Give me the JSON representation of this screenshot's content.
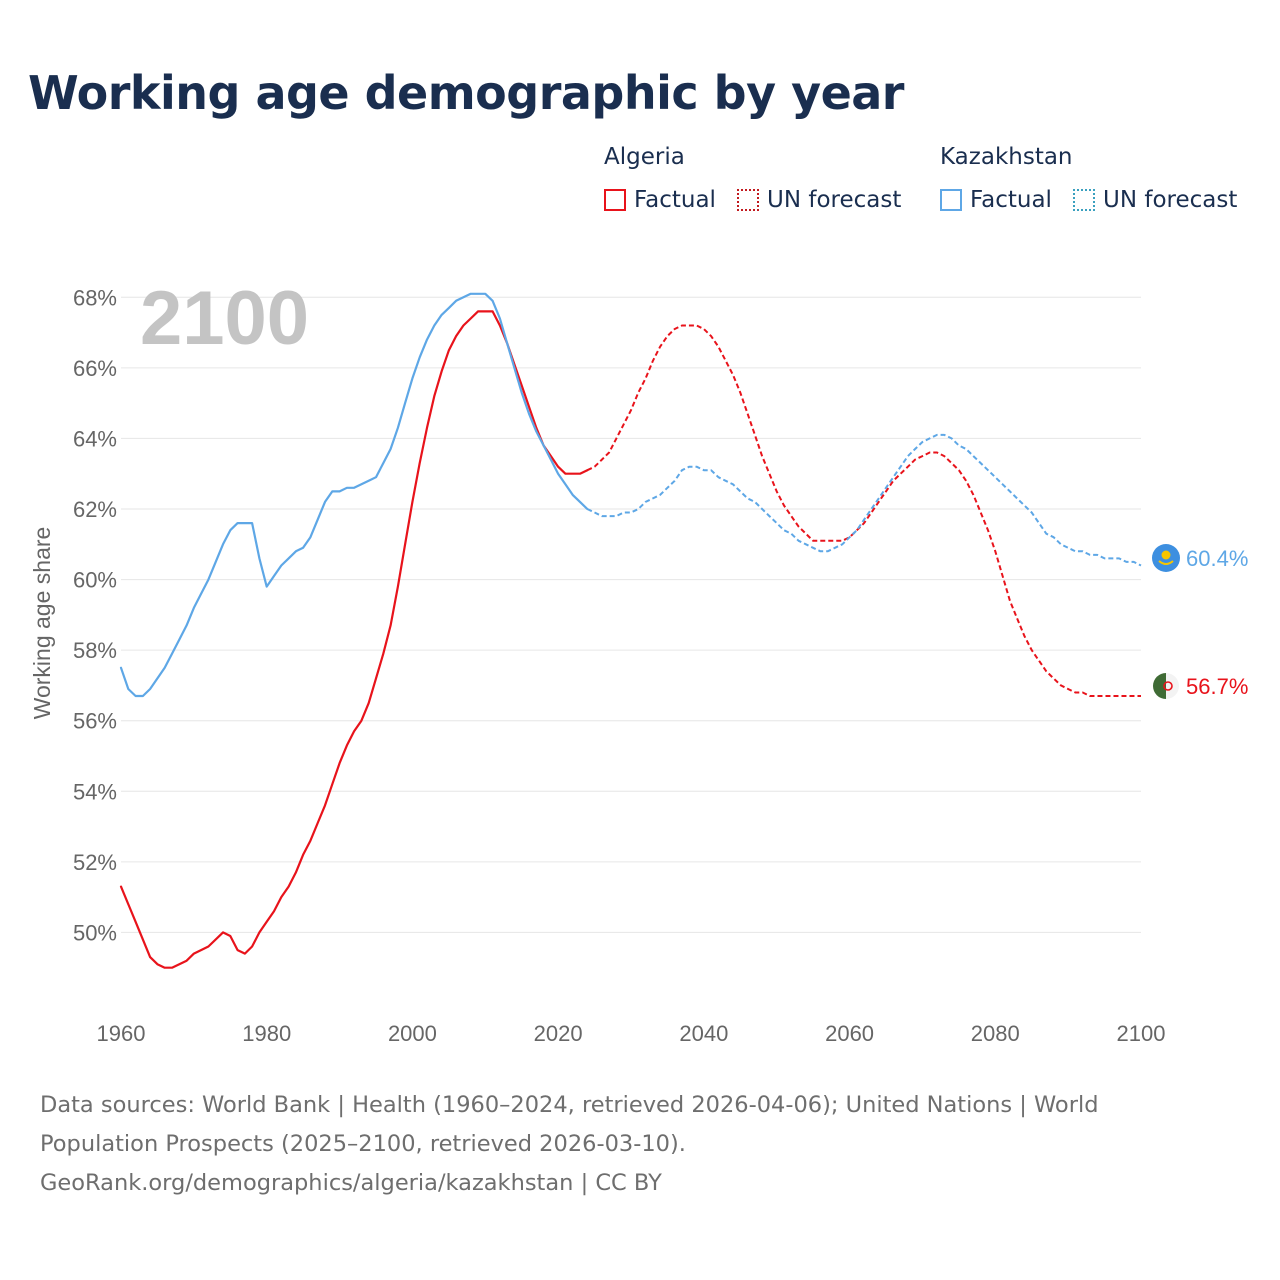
{
  "title": "Working age demographic by year",
  "legend": {
    "groups": [
      {
        "name": "Algeria",
        "factual": "Factual",
        "forecast": "UN forecast"
      },
      {
        "name": "Kazakhstan",
        "factual": "Factual",
        "forecast": "UN forecast"
      }
    ]
  },
  "year_overlay": "2100",
  "sources": {
    "line1": "Data sources: World Bank | Health (1960–2024, retrieved 2026-04-06); United Nations | World Population Prospects (2025–2100, retrieved 2026-03-10).",
    "line2": "GeoRank.org/demographics/algeria/kazakhstan | CC BY"
  },
  "colors": {
    "algeria": "#e8131b",
    "kazakhstan": "#5ea7e6",
    "grid": "#e6e6e6",
    "axis_text": "#666666",
    "title": "#1a2e4f"
  },
  "chart_data": {
    "type": "line",
    "title": "Working age demographic by year",
    "xlabel": "",
    "ylabel": "Working age share",
    "xlim": [
      1960,
      2100
    ],
    "ylim": [
      48,
      69
    ],
    "x_ticks": [
      1960,
      1980,
      2000,
      2020,
      2040,
      2060,
      2080,
      2100
    ],
    "y_ticks": [
      50,
      52,
      54,
      56,
      58,
      60,
      62,
      64,
      66,
      68
    ],
    "y_tick_labels": [
      "50%",
      "52%",
      "54%",
      "56%",
      "58%",
      "60%",
      "62%",
      "64%",
      "66%",
      "68%"
    ],
    "series": [
      {
        "name": "Algeria",
        "color": "#e8131b",
        "end_label": "56.7%",
        "flag_icon": "algeria-flag-icon",
        "factual": [
          [
            1960,
            51.3
          ],
          [
            1962,
            50.3
          ],
          [
            1964,
            49.3
          ],
          [
            1965,
            49.1
          ],
          [
            1966,
            49.0
          ],
          [
            1967,
            49.0
          ],
          [
            1968,
            49.1
          ],
          [
            1969,
            49.2
          ],
          [
            1970,
            49.4
          ],
          [
            1972,
            49.6
          ],
          [
            1974,
            50.0
          ],
          [
            1975,
            49.9
          ],
          [
            1976,
            49.5
          ],
          [
            1977,
            49.4
          ],
          [
            1978,
            49.6
          ],
          [
            1979,
            50.0
          ],
          [
            1980,
            50.3
          ],
          [
            1981,
            50.6
          ],
          [
            1982,
            51.0
          ],
          [
            1983,
            51.3
          ],
          [
            1984,
            51.7
          ],
          [
            1985,
            52.2
          ],
          [
            1986,
            52.6
          ],
          [
            1987,
            53.1
          ],
          [
            1988,
            53.6
          ],
          [
            1989,
            54.2
          ],
          [
            1990,
            54.8
          ],
          [
            1991,
            55.3
          ],
          [
            1992,
            55.7
          ],
          [
            1993,
            56.0
          ],
          [
            1994,
            56.5
          ],
          [
            1995,
            57.2
          ],
          [
            1996,
            57.9
          ],
          [
            1997,
            58.7
          ],
          [
            1998,
            59.8
          ],
          [
            1999,
            61.0
          ],
          [
            2000,
            62.2
          ],
          [
            2001,
            63.3
          ],
          [
            2002,
            64.3
          ],
          [
            2003,
            65.2
          ],
          [
            2004,
            65.9
          ],
          [
            2005,
            66.5
          ],
          [
            2006,
            66.9
          ],
          [
            2007,
            67.2
          ],
          [
            2008,
            67.4
          ],
          [
            2009,
            67.6
          ],
          [
            2010,
            67.6
          ],
          [
            2011,
            67.6
          ],
          [
            2012,
            67.2
          ],
          [
            2013,
            66.7
          ],
          [
            2014,
            66.1
          ],
          [
            2015,
            65.5
          ],
          [
            2016,
            64.9
          ],
          [
            2017,
            64.3
          ],
          [
            2018,
            63.8
          ],
          [
            2019,
            63.5
          ],
          [
            2020,
            63.2
          ],
          [
            2021,
            63.0
          ],
          [
            2022,
            63.0
          ],
          [
            2023,
            63.0
          ],
          [
            2024,
            63.1
          ]
        ],
        "forecast": [
          [
            2024,
            63.1
          ],
          [
            2025,
            63.2
          ],
          [
            2026,
            63.4
          ],
          [
            2027,
            63.6
          ],
          [
            2028,
            64.0
          ],
          [
            2029,
            64.4
          ],
          [
            2030,
            64.8
          ],
          [
            2031,
            65.3
          ],
          [
            2032,
            65.7
          ],
          [
            2033,
            66.2
          ],
          [
            2034,
            66.6
          ],
          [
            2035,
            66.9
          ],
          [
            2036,
            67.1
          ],
          [
            2037,
            67.2
          ],
          [
            2038,
            67.2
          ],
          [
            2039,
            67.2
          ],
          [
            2040,
            67.1
          ],
          [
            2041,
            66.9
          ],
          [
            2042,
            66.6
          ],
          [
            2043,
            66.2
          ],
          [
            2044,
            65.8
          ],
          [
            2045,
            65.3
          ],
          [
            2046,
            64.7
          ],
          [
            2047,
            64.1
          ],
          [
            2048,
            63.5
          ],
          [
            2049,
            63.0
          ],
          [
            2050,
            62.5
          ],
          [
            2051,
            62.1
          ],
          [
            2052,
            61.8
          ],
          [
            2053,
            61.5
          ],
          [
            2054,
            61.3
          ],
          [
            2055,
            61.1
          ],
          [
            2056,
            61.1
          ],
          [
            2057,
            61.1
          ],
          [
            2058,
            61.1
          ],
          [
            2059,
            61.1
          ],
          [
            2060,
            61.2
          ],
          [
            2061,
            61.4
          ],
          [
            2062,
            61.6
          ],
          [
            2063,
            61.9
          ],
          [
            2064,
            62.2
          ],
          [
            2065,
            62.5
          ],
          [
            2066,
            62.8
          ],
          [
            2067,
            63.0
          ],
          [
            2068,
            63.2
          ],
          [
            2069,
            63.4
          ],
          [
            2070,
            63.5
          ],
          [
            2071,
            63.6
          ],
          [
            2072,
            63.6
          ],
          [
            2073,
            63.5
          ],
          [
            2074,
            63.3
          ],
          [
            2075,
            63.1
          ],
          [
            2076,
            62.8
          ],
          [
            2077,
            62.4
          ],
          [
            2078,
            61.9
          ],
          [
            2079,
            61.4
          ],
          [
            2080,
            60.8
          ],
          [
            2081,
            60.1
          ],
          [
            2082,
            59.4
          ],
          [
            2083,
            58.9
          ],
          [
            2084,
            58.4
          ],
          [
            2085,
            58.0
          ],
          [
            2086,
            57.7
          ],
          [
            2087,
            57.4
          ],
          [
            2088,
            57.2
          ],
          [
            2089,
            57.0
          ],
          [
            2090,
            56.9
          ],
          [
            2091,
            56.8
          ],
          [
            2092,
            56.8
          ],
          [
            2093,
            56.7
          ],
          [
            2094,
            56.7
          ],
          [
            2095,
            56.7
          ],
          [
            2096,
            56.7
          ],
          [
            2097,
            56.7
          ],
          [
            2098,
            56.7
          ],
          [
            2099,
            56.7
          ],
          [
            2100,
            56.7
          ]
        ]
      },
      {
        "name": "Kazakhstan",
        "color": "#5ea7e6",
        "end_label": "60.4%",
        "flag_icon": "kazakhstan-flag-icon",
        "factual": [
          [
            1960,
            57.5
          ],
          [
            1961,
            56.9
          ],
          [
            1962,
            56.7
          ],
          [
            1963,
            56.7
          ],
          [
            1964,
            56.9
          ],
          [
            1965,
            57.2
          ],
          [
            1966,
            57.5
          ],
          [
            1967,
            57.9
          ],
          [
            1968,
            58.3
          ],
          [
            1969,
            58.7
          ],
          [
            1970,
            59.2
          ],
          [
            1971,
            59.6
          ],
          [
            1972,
            60.0
          ],
          [
            1973,
            60.5
          ],
          [
            1974,
            61.0
          ],
          [
            1975,
            61.4
          ],
          [
            1976,
            61.6
          ],
          [
            1977,
            61.6
          ],
          [
            1978,
            61.6
          ],
          [
            1979,
            60.6
          ],
          [
            1980,
            59.8
          ],
          [
            1981,
            60.1
          ],
          [
            1982,
            60.4
          ],
          [
            1983,
            60.6
          ],
          [
            1984,
            60.8
          ],
          [
            1985,
            60.9
          ],
          [
            1986,
            61.2
          ],
          [
            1987,
            61.7
          ],
          [
            1988,
            62.2
          ],
          [
            1989,
            62.5
          ],
          [
            1990,
            62.5
          ],
          [
            1991,
            62.6
          ],
          [
            1992,
            62.6
          ],
          [
            1993,
            62.7
          ],
          [
            1994,
            62.8
          ],
          [
            1995,
            62.9
          ],
          [
            1996,
            63.3
          ],
          [
            1997,
            63.7
          ],
          [
            1998,
            64.3
          ],
          [
            1999,
            65.0
          ],
          [
            2000,
            65.7
          ],
          [
            2001,
            66.3
          ],
          [
            2002,
            66.8
          ],
          [
            2003,
            67.2
          ],
          [
            2004,
            67.5
          ],
          [
            2005,
            67.7
          ],
          [
            2006,
            67.9
          ],
          [
            2007,
            68.0
          ],
          [
            2008,
            68.1
          ],
          [
            2009,
            68.1
          ],
          [
            2010,
            68.1
          ],
          [
            2011,
            67.9
          ],
          [
            2012,
            67.4
          ],
          [
            2013,
            66.7
          ],
          [
            2014,
            66.0
          ],
          [
            2015,
            65.3
          ],
          [
            2016,
            64.7
          ],
          [
            2017,
            64.2
          ],
          [
            2018,
            63.8
          ],
          [
            2019,
            63.4
          ],
          [
            2020,
            63.0
          ],
          [
            2021,
            62.7
          ],
          [
            2022,
            62.4
          ],
          [
            2023,
            62.2
          ],
          [
            2024,
            62.0
          ]
        ],
        "forecast": [
          [
            2024,
            62.0
          ],
          [
            2025,
            61.9
          ],
          [
            2026,
            61.8
          ],
          [
            2027,
            61.8
          ],
          [
            2028,
            61.8
          ],
          [
            2029,
            61.9
          ],
          [
            2030,
            61.9
          ],
          [
            2031,
            62.0
          ],
          [
            2032,
            62.2
          ],
          [
            2033,
            62.3
          ],
          [
            2034,
            62.4
          ],
          [
            2035,
            62.6
          ],
          [
            2036,
            62.8
          ],
          [
            2037,
            63.1
          ],
          [
            2038,
            63.2
          ],
          [
            2039,
            63.2
          ],
          [
            2040,
            63.1
          ],
          [
            2041,
            63.1
          ],
          [
            2042,
            62.9
          ],
          [
            2043,
            62.8
          ],
          [
            2044,
            62.7
          ],
          [
            2045,
            62.5
          ],
          [
            2046,
            62.3
          ],
          [
            2047,
            62.2
          ],
          [
            2048,
            62.0
          ],
          [
            2049,
            61.8
          ],
          [
            2050,
            61.6
          ],
          [
            2051,
            61.4
          ],
          [
            2052,
            61.3
          ],
          [
            2053,
            61.1
          ],
          [
            2054,
            61.0
          ],
          [
            2055,
            60.9
          ],
          [
            2056,
            60.8
          ],
          [
            2057,
            60.8
          ],
          [
            2058,
            60.9
          ],
          [
            2059,
            61.0
          ],
          [
            2060,
            61.2
          ],
          [
            2061,
            61.4
          ],
          [
            2062,
            61.7
          ],
          [
            2063,
            62.0
          ],
          [
            2064,
            62.3
          ],
          [
            2065,
            62.6
          ],
          [
            2066,
            62.9
          ],
          [
            2067,
            63.2
          ],
          [
            2068,
            63.5
          ],
          [
            2069,
            63.7
          ],
          [
            2070,
            63.9
          ],
          [
            2071,
            64.0
          ],
          [
            2072,
            64.1
          ],
          [
            2073,
            64.1
          ],
          [
            2074,
            64.0
          ],
          [
            2075,
            63.8
          ],
          [
            2076,
            63.7
          ],
          [
            2077,
            63.5
          ],
          [
            2078,
            63.3
          ],
          [
            2079,
            63.1
          ],
          [
            2080,
            62.9
          ],
          [
            2081,
            62.7
          ],
          [
            2082,
            62.5
          ],
          [
            2083,
            62.3
          ],
          [
            2084,
            62.1
          ],
          [
            2085,
            61.9
          ],
          [
            2086,
            61.6
          ],
          [
            2087,
            61.3
          ],
          [
            2088,
            61.2
          ],
          [
            2089,
            61.0
          ],
          [
            2090,
            60.9
          ],
          [
            2091,
            60.8
          ],
          [
            2092,
            60.8
          ],
          [
            2093,
            60.7
          ],
          [
            2094,
            60.7
          ],
          [
            2095,
            60.6
          ],
          [
            2096,
            60.6
          ],
          [
            2097,
            60.6
          ],
          [
            2098,
            60.5
          ],
          [
            2099,
            60.5
          ],
          [
            2100,
            60.4
          ]
        ]
      }
    ]
  }
}
